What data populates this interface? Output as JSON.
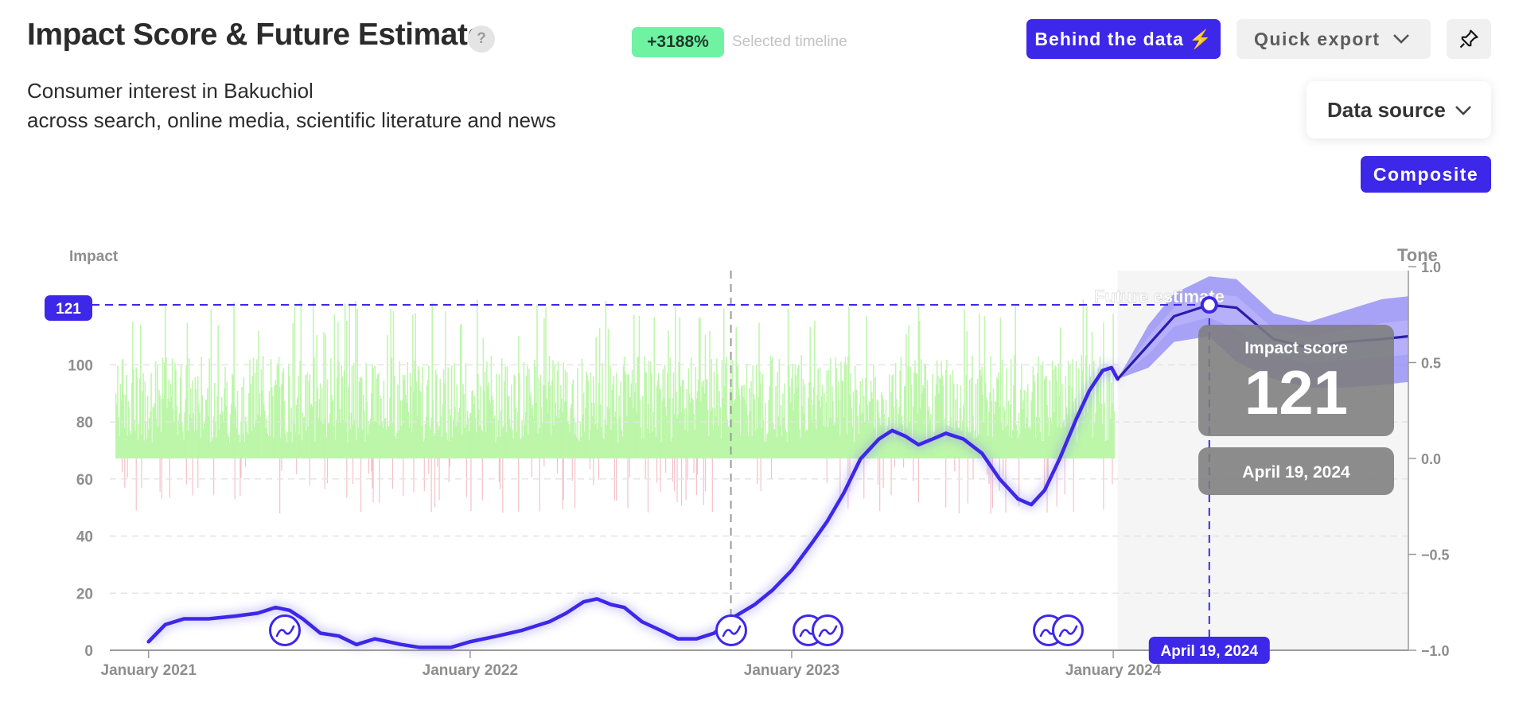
{
  "header": {
    "title": "Impact Score & Future Estimate",
    "help_label": "?",
    "change_badge": "+3188%",
    "change_note": "Selected timeline",
    "subtitle_line1": "Consumer interest in Bakuchiol",
    "subtitle_line2": "across search, online media, scientific literature and news"
  },
  "toolbar": {
    "behind_label": "Behind the data",
    "export_label": "Quick export",
    "data_source_label": "Data source",
    "composite_label": "Composite"
  },
  "colors": {
    "accent": "#3d27e8",
    "positive_tone": "#b6f5a0",
    "negative_tone": "#f2b2bd",
    "forecast_band": "#8e85f6",
    "badge_green": "#6ff3a3"
  },
  "chart_data": {
    "type": "line",
    "left_axis": {
      "label": "Impact",
      "ticks": [
        "0",
        "20",
        "40",
        "60",
        "80",
        "100"
      ],
      "range": [
        0,
        133
      ]
    },
    "right_axis": {
      "label": "Tone",
      "ticks": [
        "1.0",
        "0.5",
        "0.0",
        "−0.5",
        "−1.0"
      ],
      "range": [
        -1,
        1
      ]
    },
    "x_ticks": [
      "January 2021",
      "January 2022",
      "January 2023",
      "January 2024"
    ],
    "x_domain": [
      "2020-11-18",
      "2024-12-01"
    ],
    "selected_date_marker": "2022-10-24",
    "impact_series": [
      {
        "d": "2021-01-01",
        "v": 3
      },
      {
        "d": "2021-01-20",
        "v": 9
      },
      {
        "d": "2021-02-10",
        "v": 11
      },
      {
        "d": "2021-03-10",
        "v": 11
      },
      {
        "d": "2021-04-10",
        "v": 12
      },
      {
        "d": "2021-05-05",
        "v": 13
      },
      {
        "d": "2021-05-25",
        "v": 15
      },
      {
        "d": "2021-06-10",
        "v": 14
      },
      {
        "d": "2021-06-25",
        "v": 11
      },
      {
        "d": "2021-07-15",
        "v": 6
      },
      {
        "d": "2021-08-05",
        "v": 5
      },
      {
        "d": "2021-08-25",
        "v": 2
      },
      {
        "d": "2021-09-15",
        "v": 4
      },
      {
        "d": "2021-10-15",
        "v": 2
      },
      {
        "d": "2021-11-05",
        "v": 1
      },
      {
        "d": "2021-12-10",
        "v": 1
      },
      {
        "d": "2022-01-01",
        "v": 3
      },
      {
        "d": "2022-02-01",
        "v": 5
      },
      {
        "d": "2022-03-01",
        "v": 7
      },
      {
        "d": "2022-04-01",
        "v": 10
      },
      {
        "d": "2022-04-20",
        "v": 13
      },
      {
        "d": "2022-05-10",
        "v": 17
      },
      {
        "d": "2022-05-25",
        "v": 18
      },
      {
        "d": "2022-06-10",
        "v": 16
      },
      {
        "d": "2022-06-25",
        "v": 15
      },
      {
        "d": "2022-07-15",
        "v": 10
      },
      {
        "d": "2022-08-05",
        "v": 7
      },
      {
        "d": "2022-08-25",
        "v": 4
      },
      {
        "d": "2022-09-15",
        "v": 4
      },
      {
        "d": "2022-10-05",
        "v": 6
      },
      {
        "d": "2022-10-24",
        "v": 11
      },
      {
        "d": "2022-11-20",
        "v": 16
      },
      {
        "d": "2022-12-10",
        "v": 21
      },
      {
        "d": "2023-01-01",
        "v": 28
      },
      {
        "d": "2023-01-25",
        "v": 38
      },
      {
        "d": "2023-02-10",
        "v": 45
      },
      {
        "d": "2023-03-01",
        "v": 55
      },
      {
        "d": "2023-03-20",
        "v": 67
      },
      {
        "d": "2023-04-10",
        "v": 74
      },
      {
        "d": "2023-04-25",
        "v": 77
      },
      {
        "d": "2023-05-10",
        "v": 75
      },
      {
        "d": "2023-05-25",
        "v": 72
      },
      {
        "d": "2023-06-10",
        "v": 74
      },
      {
        "d": "2023-06-25",
        "v": 76
      },
      {
        "d": "2023-07-15",
        "v": 74
      },
      {
        "d": "2023-08-05",
        "v": 69
      },
      {
        "d": "2023-08-25",
        "v": 60
      },
      {
        "d": "2023-09-15",
        "v": 53
      },
      {
        "d": "2023-09-30",
        "v": 51
      },
      {
        "d": "2023-10-15",
        "v": 56
      },
      {
        "d": "2023-11-01",
        "v": 67
      },
      {
        "d": "2023-11-20",
        "v": 81
      },
      {
        "d": "2023-12-05",
        "v": 91
      },
      {
        "d": "2023-12-20",
        "v": 98
      },
      {
        "d": "2023-12-30",
        "v": 99
      },
      {
        "d": "2024-01-06",
        "v": 95
      }
    ],
    "forecast": [
      {
        "d": "2024-01-06",
        "v": 95,
        "lo": 95,
        "hi": 95
      },
      {
        "d": "2024-02-10",
        "v": 107,
        "lo": 99,
        "hi": 114
      },
      {
        "d": "2024-03-10",
        "v": 117,
        "lo": 108,
        "hi": 125
      },
      {
        "d": "2024-04-19",
        "v": 121,
        "lo": 110,
        "hi": 131
      },
      {
        "d": "2024-05-20",
        "v": 120,
        "lo": 101,
        "hi": 130
      },
      {
        "d": "2024-07-01",
        "v": 109,
        "lo": 95,
        "hi": 118
      },
      {
        "d": "2024-08-10",
        "v": 106,
        "lo": 92,
        "hi": 115
      },
      {
        "d": "2024-09-20",
        "v": 108,
        "lo": 92,
        "hi": 119
      },
      {
        "d": "2024-11-01",
        "v": 109,
        "lo": 93,
        "hi": 123
      },
      {
        "d": "2024-12-01",
        "v": 110,
        "lo": 94,
        "hi": 124
      }
    ],
    "forecast_label": "Future estimate",
    "forecast_start": "2024-01-06",
    "hover": {
      "date_label": "April 19, 2024",
      "date": "2024-04-19",
      "value": 121,
      "value_label": "121",
      "tooltip_title": "Impact score",
      "tooltip_value": "121",
      "tooltip_date": "April 19, 2024"
    },
    "annotation_markers": [
      {
        "d": "2021-06-05",
        "count": 1
      },
      {
        "d": "2022-10-24",
        "count": 1
      },
      {
        "d": "2023-01-20",
        "count": 2
      },
      {
        "d": "2023-10-20",
        "count": 2
      }
    ],
    "tone_window": [
      "2020-11-25",
      "2024-01-02"
    ],
    "grid": true
  }
}
